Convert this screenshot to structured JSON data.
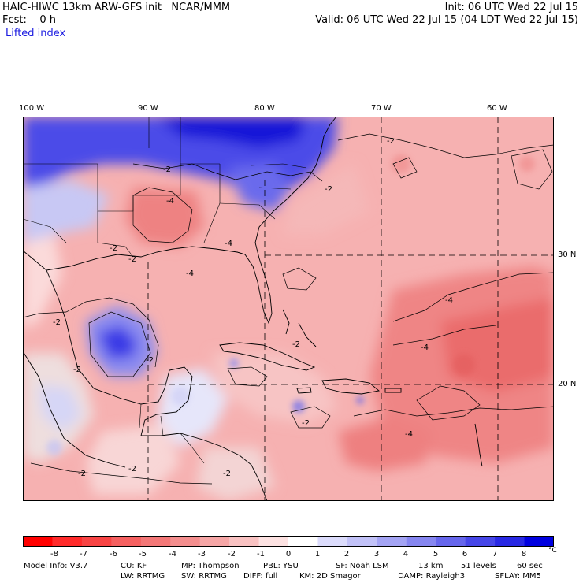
{
  "header": {
    "title": "HAIC-HIWC 13km ARW-GFS init   NCAR/MMM",
    "init": "Init: 06 UTC Wed 22 Jul 15",
    "fcst": "Fcst:    0 h",
    "valid": "Valid: 06 UTC Wed 22 Jul 15 (04 LDT Wed 22 Jul 15)",
    "field": "Lifted index"
  },
  "map": {
    "lon_labels": [
      "100 W",
      "90 W",
      "80 W",
      "70 W",
      "60 W"
    ],
    "lat_labels": [
      "30 N",
      "20 N"
    ],
    "contour_labels": [
      "-2",
      "-2",
      "-2",
      "-2",
      "-2",
      "-4",
      "-4",
      "-4",
      "-4",
      "-4",
      "-2",
      "-2",
      "-2",
      "-2",
      "-2",
      "-2",
      "-2",
      "-2",
      "-4"
    ],
    "colors": {
      "background_warm": "#f6b3b3",
      "strong_warm": "#ef7a7a",
      "cold": "#2828e6",
      "neutral": "#ffffff"
    }
  },
  "colorbar": {
    "labels": [
      "-8",
      "-7",
      "-6",
      "-5",
      "-4",
      "-3",
      "-2",
      "-1",
      "0",
      "1",
      "2",
      "3",
      "4",
      "5",
      "6",
      "7",
      "8"
    ],
    "unit": "°C",
    "colors": [
      "#ff0000",
      "#ff2a2a",
      "#f84444",
      "#f56060",
      "#f37777",
      "#f48e8e",
      "#f6a6a6",
      "#f9c2c2",
      "#fde2e2",
      "#ffffff",
      "#dcdcfc",
      "#c2c2f8",
      "#a4a4f4",
      "#8686f0",
      "#6666ec",
      "#4646e8",
      "#2828e4",
      "#0000e0"
    ]
  },
  "footer": {
    "line1": [
      "Model Info: V3.7",
      "CU: KF",
      "MP: Thompson",
      "PBL: YSU",
      "SF: Noah LSM",
      "13 km",
      "51 levels",
      "60 sec"
    ],
    "line2": [
      "LW: RRTMG",
      "SW: RRTMG",
      "DIFF: full",
      "KM: 2D Smagor",
      "DAMP: Rayleigh3",
      "SFLAY: MM5"
    ]
  }
}
